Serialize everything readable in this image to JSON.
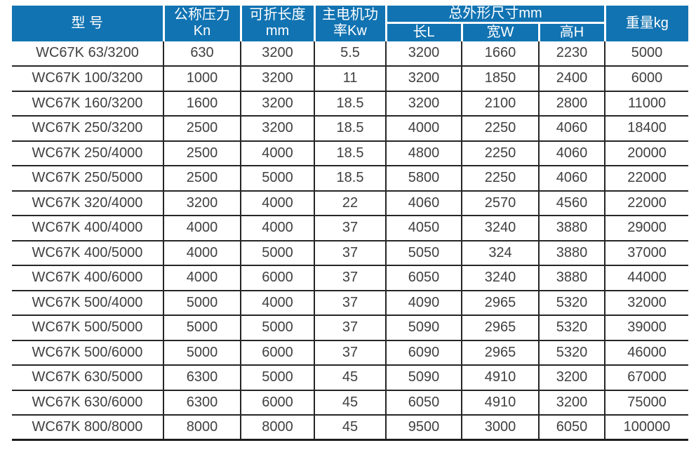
{
  "table": {
    "header": {
      "model": "型 号",
      "pressure_line1": "公称压力",
      "pressure_line2": "Kn",
      "fold_length_line1": "可折长度",
      "fold_length_line2": "mm",
      "motor_power_line1": "主电机功",
      "motor_power_line2": "率Kw",
      "dimensions_group": "总外形尺寸mm",
      "dim_length": "长L",
      "dim_width": "宽W",
      "dim_height": "高H",
      "weight": "重量kg"
    },
    "rows": [
      [
        "WC67K 63/3200",
        "630",
        "3200",
        "5.5",
        "3200",
        "1660",
        "2230",
        "5000"
      ],
      [
        "WC67K 100/3200",
        "1000",
        "3200",
        "11",
        "3200",
        "1850",
        "2400",
        "6000"
      ],
      [
        "WC67K 160/3200",
        "1600",
        "3200",
        "18.5",
        "3200",
        "2100",
        "2800",
        "11000"
      ],
      [
        "WC67K 250/3200",
        "2500",
        "3200",
        "18.5",
        "4000",
        "2250",
        "4060",
        "18400"
      ],
      [
        "WC67K 250/4000",
        "2500",
        "4000",
        "18.5",
        "4800",
        "2250",
        "4060",
        "20000"
      ],
      [
        "WC67K 250/5000",
        "2500",
        "5000",
        "18.5",
        "5800",
        "2250",
        "4060",
        "22000"
      ],
      [
        "WC67K 320/4000",
        "3200",
        "4000",
        "22",
        "4060",
        "2570",
        "4560",
        "22000"
      ],
      [
        "WC67K 400/4000",
        "4000",
        "4000",
        "37",
        "4050",
        "3240",
        "3880",
        "29000"
      ],
      [
        "WC67K 400/5000",
        "4000",
        "5000",
        "37",
        "5050",
        "324",
        "3880",
        "37000"
      ],
      [
        "WC67K 400/6000",
        "4000",
        "6000",
        "37",
        "6050",
        "3240",
        "3880",
        "44000"
      ],
      [
        "WC67K 500/4000",
        "5000",
        "4000",
        "37",
        "4090",
        "2965",
        "5320",
        "32000"
      ],
      [
        "WC67K 500/5000",
        "5000",
        "5000",
        "37",
        "5090",
        "2965",
        "5320",
        "39000"
      ],
      [
        "WC67K 500/6000",
        "5000",
        "6000",
        "37",
        "6090",
        "2965",
        "5320",
        "46000"
      ],
      [
        "WC67K 630/5000",
        "6300",
        "5000",
        "45",
        "5090",
        "4910",
        "3200",
        "67000"
      ],
      [
        "WC67K 630/6000",
        "6300",
        "6000",
        "45",
        "6050",
        "4910",
        "3200",
        "75000"
      ],
      [
        "WC67K 800/8000",
        "8000",
        "8000",
        "45",
        "9500",
        "3000",
        "6050",
        "100000"
      ]
    ]
  },
  "colors": {
    "header_bg": "#1173b2",
    "header_text": "#ffffff",
    "body_text": "#404040",
    "grid_line": "#262626",
    "page_bg": "#ffffff"
  }
}
